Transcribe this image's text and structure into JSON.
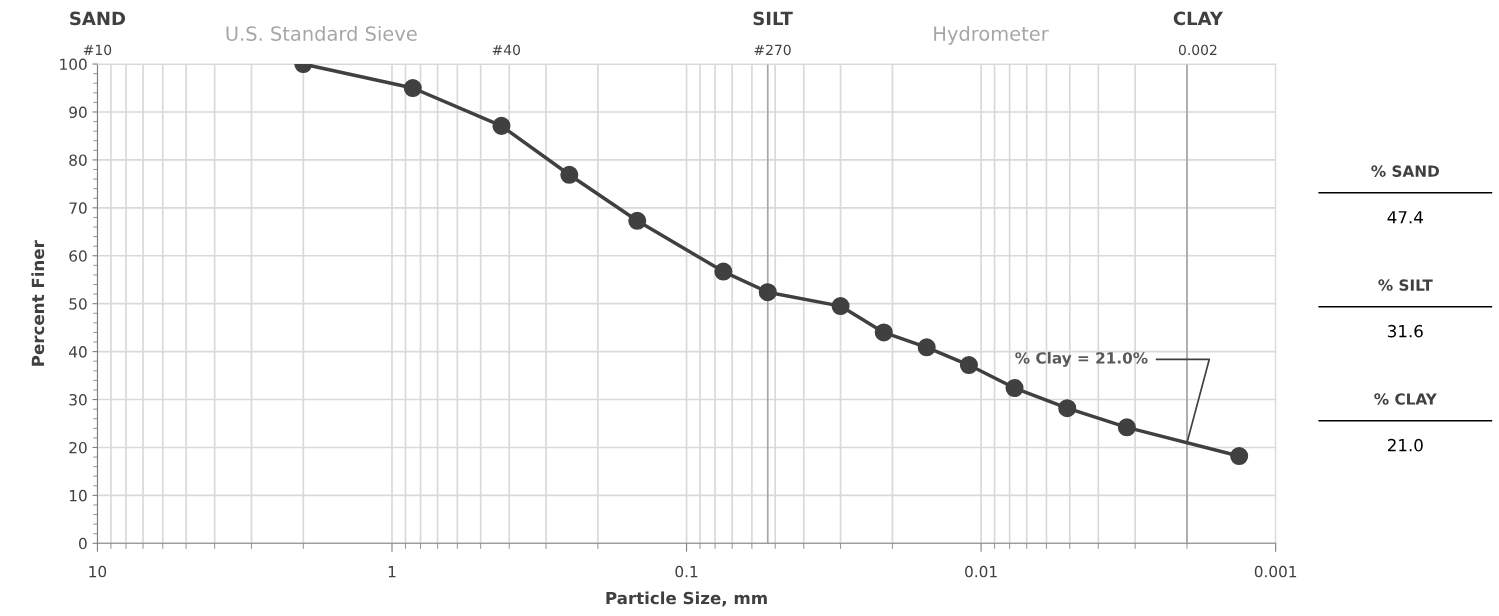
{
  "chart_data": {
    "type": "line",
    "xlabel": "Particle Size, mm",
    "ylabel": "Percent Finer",
    "x": [
      2.0,
      0.85,
      0.425,
      0.25,
      0.147,
      0.075,
      0.053,
      0.03,
      0.0214,
      0.0153,
      0.011,
      0.0077,
      0.0051,
      0.0032,
      0.00133
    ],
    "series": [
      {
        "color": "#404040",
        "values": [
          100,
          95,
          87.1,
          76.9,
          67.3,
          56.7,
          52.4,
          49.5,
          44.0,
          40.9,
          37.2,
          32.4,
          28.2,
          24.2,
          18.2
        ]
      }
    ],
    "log": "x",
    "xlim": [
      10,
      0.001
    ],
    "xticks": [
      10,
      1,
      0.1,
      0.01,
      0.001
    ],
    "ylim": [
      0,
      100
    ],
    "yticks": [
      0,
      10,
      20,
      30,
      40,
      50,
      60,
      70,
      80,
      90,
      100
    ],
    "grid": true,
    "marker": "circle",
    "line_style": "solid",
    "ref_lines": [
      {
        "axis": "x",
        "value": 0.053,
        "color": "#a6a6a6"
      },
      {
        "axis": "x",
        "value": 0.002,
        "color": "#a6a6a6"
      }
    ],
    "annotations": [
      "SAND",
      "U.S. Standard Sieve",
      "#10",
      "#40",
      "SILT",
      "#270",
      "Hydrometer",
      "CLAY",
      "0.002",
      {
        "text": "% Clay = 21.0%",
        "x": 0.002,
        "y": 21.0
      },
      "% SAND",
      "47.4",
      "% SILT",
      "31.6",
      "% CLAY",
      "21.0"
    ]
  }
}
